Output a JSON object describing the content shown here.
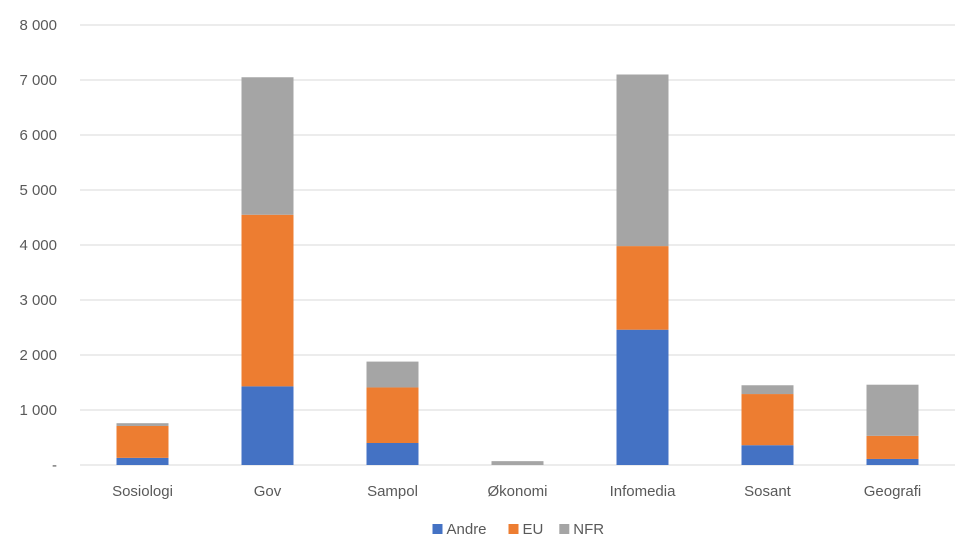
{
  "chart_data": {
    "type": "bar",
    "stacked": true,
    "title": "",
    "xlabel": "",
    "ylabel": "",
    "categories": [
      "Sosiologi",
      "Gov",
      "Sampol",
      "Økonomi",
      "Infomedia",
      "Sosant",
      "Geografi"
    ],
    "series": [
      {
        "name": "Andre",
        "color": "#4472c4",
        "values": [
          130,
          1430,
          400,
          0,
          2460,
          360,
          110
        ]
      },
      {
        "name": "EU",
        "color": "#ed7d31",
        "values": [
          580,
          3120,
          1010,
          0,
          1520,
          930,
          420
        ]
      },
      {
        "name": "NFR",
        "color": "#a5a5a5",
        "values": [
          50,
          2500,
          470,
          70,
          3120,
          160,
          930
        ]
      }
    ],
    "ylim": [
      0,
      8000
    ],
    "y_ticks": [
      {
        "value": 0,
        "label": "-"
      },
      {
        "value": 1000,
        "label": "1 000"
      },
      {
        "value": 2000,
        "label": "2 000"
      },
      {
        "value": 3000,
        "label": "3 000"
      },
      {
        "value": 4000,
        "label": "4 000"
      },
      {
        "value": 5000,
        "label": "5 000"
      },
      {
        "value": 6000,
        "label": "6 000"
      },
      {
        "value": 7000,
        "label": "7 000"
      },
      {
        "value": 8000,
        "label": "8 000"
      }
    ],
    "grid": true,
    "legend_position": "bottom"
  }
}
